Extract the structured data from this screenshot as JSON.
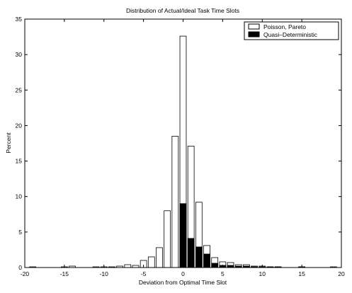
{
  "chart_data": {
    "type": "bar",
    "title": "Distribution of Actual/Ideal Task Time Slots",
    "xlabel": "Deviation from Optimal Time Slot",
    "ylabel": "Percent",
    "xlim": [
      -20,
      20
    ],
    "ylim": [
      0,
      35
    ],
    "xticks": [
      -20,
      -15,
      -10,
      -5,
      0,
      5,
      10,
      15,
      20
    ],
    "yticks": [
      0,
      5,
      10,
      15,
      20,
      25,
      30,
      35
    ],
    "grid": false,
    "legend_position": "top-right",
    "colors": {
      "series_0": "#ffffff",
      "series_1": "#000000",
      "edge": "#000000"
    },
    "series": [
      {
        "name": "Poisson, Pareto",
        "x": [
          -19,
          -15,
          -14,
          -11,
          -10,
          -9,
          -8,
          -7,
          -6,
          -5,
          -4,
          -3,
          -2,
          -1,
          0,
          1,
          2,
          3,
          4,
          5,
          6,
          7,
          8,
          9,
          10,
          11,
          12,
          15,
          19
        ],
        "values": [
          0.1,
          0.1,
          0.2,
          0.1,
          0.1,
          0.1,
          0.2,
          0.4,
          0.3,
          1.0,
          1.5,
          2.8,
          8.0,
          18.5,
          32.6,
          17.1,
          9.2,
          3.1,
          1.4,
          0.8,
          0.7,
          0.4,
          0.4,
          0.2,
          0.2,
          0.1,
          0.1,
          0.1,
          0.1
        ]
      },
      {
        "name": "Quasi–Deterministic",
        "x": [
          0,
          1,
          2,
          3,
          4,
          5,
          6,
          7,
          8,
          9,
          10,
          11,
          12,
          15
        ],
        "values": [
          9.0,
          4.1,
          2.9,
          1.9,
          0.6,
          0.3,
          0.3,
          0.2,
          0.2,
          0.1,
          0.1,
          0.1,
          0.1,
          0.1
        ]
      }
    ]
  }
}
